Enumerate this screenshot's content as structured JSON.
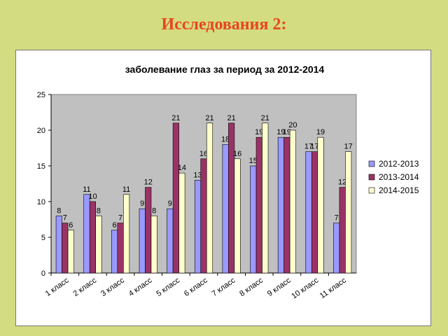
{
  "slide": {
    "title": "Исследования 2:"
  },
  "colors": {
    "background": "#d3dc80",
    "title": "#e8461f",
    "plot_area": "#c0c0c0"
  },
  "chart_data": {
    "type": "bar",
    "title": "заболевание глаз за период за 2012-2014",
    "xlabel": "",
    "ylabel": "",
    "ylim": [
      0,
      25
    ],
    "yticks": [
      0,
      5,
      10,
      15,
      20,
      25
    ],
    "grid": false,
    "legend_position": "right",
    "categories": [
      "1 класс",
      "2 класс",
      "3 класс",
      "4 класс",
      "5 класс",
      "6 класс",
      "7 класс",
      "8 класс",
      "9 класс",
      "10 класс",
      "11 класс"
    ],
    "series": [
      {
        "name": "2012-2013",
        "color": "#9999ff",
        "values": [
          8,
          11,
          6,
          9,
          9,
          13,
          18,
          15,
          19,
          17,
          7
        ]
      },
      {
        "name": "2013-2014",
        "color": "#993366",
        "values": [
          7,
          10,
          7,
          12,
          21,
          16,
          21,
          19,
          19,
          17,
          12
        ]
      },
      {
        "name": "2014-2015",
        "color": "#ffffcc",
        "values": [
          6,
          8,
          11,
          8,
          14,
          21,
          16,
          21,
          20,
          19,
          17
        ]
      }
    ]
  }
}
